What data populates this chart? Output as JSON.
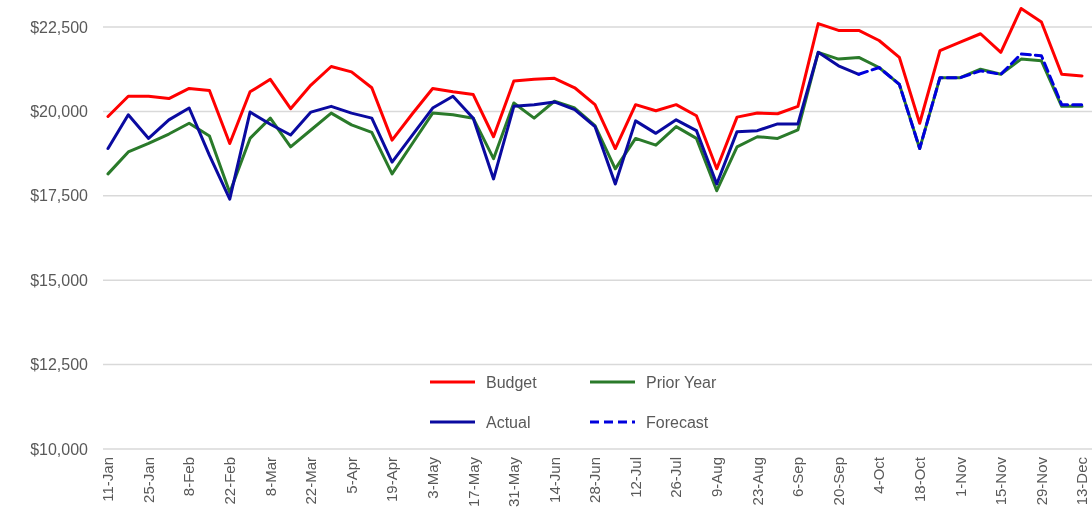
{
  "chart_data": {
    "type": "line",
    "categories": [
      "11-Jan",
      null,
      "25-Jan",
      null,
      "8-Feb",
      null,
      "22-Feb",
      null,
      "8-Mar",
      null,
      "22-Mar",
      null,
      "5-Apr",
      null,
      "19-Apr",
      null,
      "3-May",
      null,
      "17-May",
      null,
      "31-May",
      null,
      "14-Jun",
      null,
      "28-Jun",
      null,
      "12-Jul",
      null,
      "26-Jul",
      null,
      "9-Aug",
      null,
      "23-Aug",
      null,
      "6-Sep",
      null,
      "20-Sep",
      null,
      "4-Oct",
      null,
      "18-Oct",
      null,
      "1-Nov",
      null,
      "15-Nov",
      null,
      "29-Nov",
      null,
      "13-Dec"
    ],
    "series": [
      {
        "name": "Budget",
        "color": "#ff0000",
        "values": [
          19850,
          20450,
          20450,
          20380,
          20680,
          20620,
          19050,
          20580,
          20950,
          20080,
          20780,
          21330,
          21170,
          20700,
          19150,
          19930,
          20680,
          20580,
          20500,
          19250,
          20900,
          20950,
          20980,
          20700,
          20200,
          18900,
          20200,
          20020,
          20200,
          19870,
          18300,
          19830,
          19950,
          19930,
          20150,
          22600,
          22400,
          22400,
          22100,
          21600,
          19650,
          21800,
          22050,
          22300,
          21750,
          23050,
          22650,
          21100,
          21050
        ]
      },
      {
        "name": "Prior Year",
        "color": "#2a7a2a",
        "values": [
          18150,
          18800,
          19050,
          19330,
          19650,
          19270,
          17600,
          19200,
          19800,
          18950,
          19450,
          19950,
          19600,
          19380,
          18150,
          19050,
          19950,
          19900,
          19800,
          18600,
          20250,
          19800,
          20300,
          20100,
          19580,
          18300,
          19200,
          19000,
          19550,
          19200,
          17650,
          18950,
          19250,
          19200,
          19450,
          21750,
          21550,
          21600,
          21300,
          20800,
          18900,
          21000,
          21000,
          21250,
          21100,
          21550,
          21500,
          20150,
          20150
        ]
      },
      {
        "name": "Actual",
        "color": "#0a0aa0",
        "values": [
          18900,
          19900,
          19200,
          19750,
          20100,
          18700,
          17400,
          19980,
          19620,
          19300,
          19980,
          20150,
          19950,
          19800,
          18500,
          19300,
          20100,
          20450,
          19800,
          18000,
          20150,
          20200,
          20280,
          20050,
          19550,
          17850,
          19720,
          19350,
          19750,
          19430,
          17850,
          19400,
          19430,
          19630,
          19630,
          21750,
          21350,
          21100,
          null,
          null,
          null,
          null,
          null,
          null,
          null,
          null,
          null,
          null,
          null
        ]
      },
      {
        "name": "Forecast",
        "color": "#0000dd",
        "line_style": "dashed",
        "values": [
          null,
          null,
          null,
          null,
          null,
          null,
          null,
          null,
          null,
          null,
          null,
          null,
          null,
          null,
          null,
          null,
          null,
          null,
          null,
          null,
          null,
          null,
          null,
          null,
          null,
          null,
          null,
          null,
          null,
          null,
          null,
          null,
          null,
          null,
          null,
          null,
          null,
          21100,
          21300,
          20800,
          18900,
          21000,
          21000,
          21200,
          21100,
          21700,
          21650,
          20200,
          20200
        ]
      }
    ],
    "ylim": [
      10000,
      23300
    ],
    "yticks": [
      {
        "value": 10000,
        "label": "$10,000"
      },
      {
        "value": 12500,
        "label": "$12,500"
      },
      {
        "value": 15000,
        "label": "$15,000"
      },
      {
        "value": 17500,
        "label": "$17,500"
      },
      {
        "value": 20000,
        "label": "$20,000"
      },
      {
        "value": 22500,
        "label": "$22,500"
      }
    ],
    "grid": "y",
    "legend": "bottom",
    "marker": "none",
    "line_style": "solid"
  }
}
